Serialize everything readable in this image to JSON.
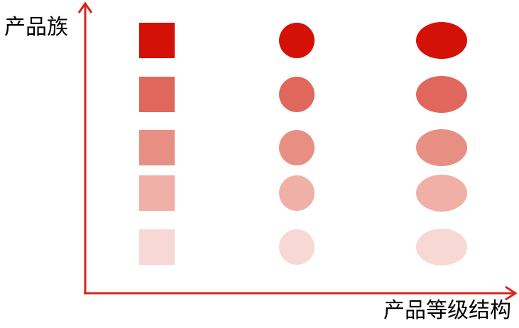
{
  "labels": {
    "y_axis": "产品族",
    "x_axis": "产品等级结构"
  },
  "colors": {
    "axis": "#d7261e",
    "levels": [
      "#d41106",
      "#e0675c",
      "#e88f84",
      "#f0b0a8",
      "#f7d8d4"
    ]
  },
  "grid": {
    "columns": [
      "square",
      "circle",
      "ellipse"
    ],
    "rows": 5
  }
}
